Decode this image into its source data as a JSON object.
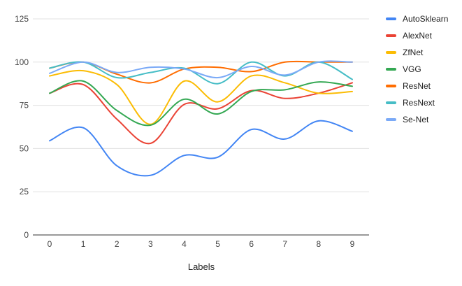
{
  "chart_data": {
    "type": "line",
    "title": "",
    "xlabel": "Labels",
    "ylabel": "",
    "x": [
      0,
      1,
      2,
      3,
      4,
      5,
      6,
      7,
      8,
      9
    ],
    "ylim": [
      0,
      125
    ],
    "yticks": [
      0,
      25,
      50,
      75,
      100,
      125
    ],
    "grid": true,
    "legend_position": "right",
    "smooth": true,
    "series": [
      {
        "name": "AutoSklearn",
        "color": "#4285F4",
        "values": [
          54.5,
          62,
          40,
          34.5,
          46,
          45,
          61,
          55.5,
          66,
          60
        ]
      },
      {
        "name": "AlexNet",
        "color": "#EA4335",
        "values": [
          82,
          87,
          67,
          53,
          75.5,
          73,
          83.5,
          79,
          82,
          88
        ]
      },
      {
        "name": "ZfNet",
        "color": "#FBBC04",
        "values": [
          92,
          95,
          87,
          64,
          89,
          77,
          92,
          88,
          82,
          83
        ]
      },
      {
        "name": "VGG",
        "color": "#34A853",
        "values": [
          82,
          89,
          72,
          63.5,
          78.5,
          70,
          83,
          84,
          88.5,
          86
        ]
      },
      {
        "name": "ResNet",
        "color": "#FF6D01",
        "values": [
          96.5,
          100,
          93,
          88,
          96,
          97,
          94.5,
          100,
          100,
          100
        ]
      },
      {
        "name": "ResNext",
        "color": "#46BDC6",
        "values": [
          96.5,
          100,
          91,
          94,
          96.5,
          87.5,
          100,
          92,
          100,
          90
        ]
      },
      {
        "name": "Se-Net",
        "color": "#7BAAF7",
        "values": [
          93.5,
          100,
          94,
          97,
          96,
          91,
          97.5,
          92.5,
          100,
          100
        ]
      }
    ]
  }
}
